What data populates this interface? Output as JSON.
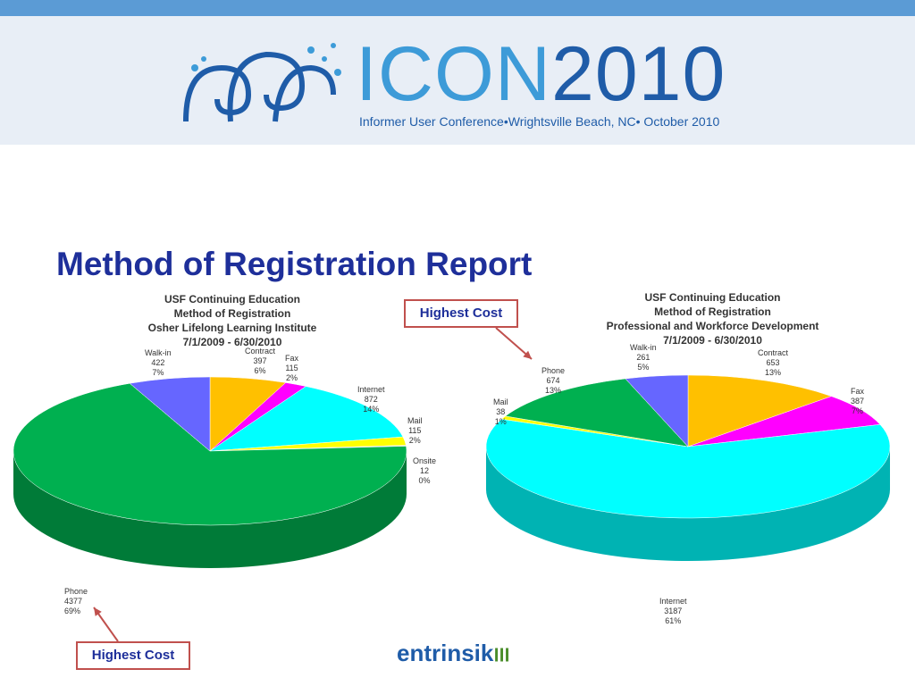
{
  "banner": {
    "icon_word": "ICON",
    "icon_year": "2010",
    "tagline": "Informer User Conference•Wrightsville Beach, NC• October 2010"
  },
  "slide": {
    "title": "Method of Registration Report"
  },
  "callouts": {
    "top": "Highest Cost",
    "bottom": "Highest Cost"
  },
  "footer": {
    "logo_text": "entrinsik"
  },
  "colors": {
    "accent": "#1e2f9a",
    "callout_border": "#c0504d",
    "topbar": "#5b9bd5"
  },
  "chart_data": [
    {
      "type": "pie",
      "title_lines": [
        "USF Continuing Education",
        "Method of Registration",
        "Osher Lifelong Learning Institute",
        "7/1/2009 - 6/30/2010"
      ],
      "slices": [
        {
          "label": "Contract",
          "value": 397,
          "pct": "6%",
          "color": "#ffc000"
        },
        {
          "label": "Fax",
          "value": 115,
          "pct": "2%",
          "color": "#ff00ff"
        },
        {
          "label": "Internet",
          "value": 872,
          "pct": "14%",
          "color": "#00ffff"
        },
        {
          "label": "Mail",
          "value": 115,
          "pct": "2%",
          "color": "#ffff00"
        },
        {
          "label": "Onsite",
          "value": 12,
          "pct": "0%",
          "color": "#cccccc"
        },
        {
          "label": "Phone",
          "value": 4377,
          "pct": "69%",
          "color": "#00b050"
        },
        {
          "label": "Walk-in",
          "value": 422,
          "pct": "7%",
          "color": "#6666ff"
        }
      ]
    },
    {
      "type": "pie",
      "title_lines": [
        "USF Continuing Education",
        "Method of Registration",
        "Professional and Workforce Development",
        "7/1/2009 - 6/30/2010"
      ],
      "slices": [
        {
          "label": "Contract",
          "value": 653,
          "pct": "13%",
          "color": "#ffc000"
        },
        {
          "label": "Fax",
          "value": 387,
          "pct": "7%",
          "color": "#ff00ff"
        },
        {
          "label": "Internet",
          "value": 3187,
          "pct": "61%",
          "color": "#00ffff"
        },
        {
          "label": "Mail",
          "value": 38,
          "pct": "1%",
          "color": "#ffff00"
        },
        {
          "label": "Phone",
          "value": 674,
          "pct": "13%",
          "color": "#00b050"
        },
        {
          "label": "Walk-in",
          "value": 261,
          "pct": "5%",
          "color": "#6666ff"
        }
      ]
    }
  ]
}
